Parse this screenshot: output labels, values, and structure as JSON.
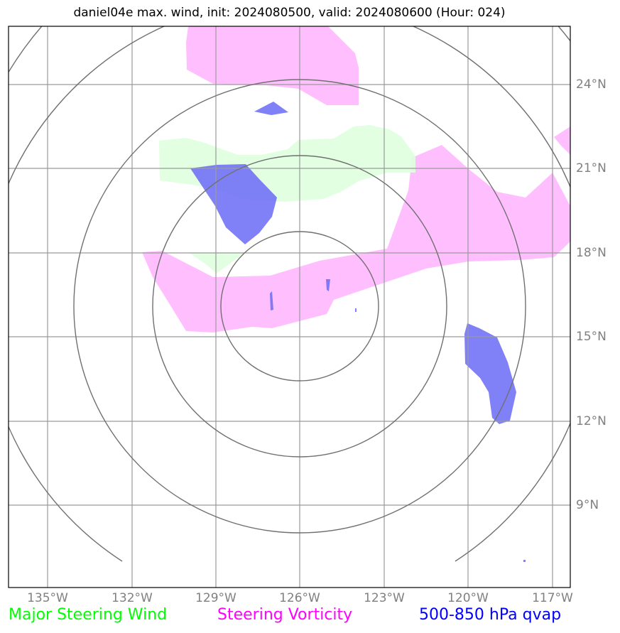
{
  "title": "daniel04e max. wind, init: 2024080500, valid: 2024080600 (Hour: 024)",
  "longitude_labels": [
    "135°W",
    "132°W",
    "129°W",
    "126°W",
    "123°W",
    "120°W",
    "117°W"
  ],
  "latitude_labels": [
    "24°N",
    "21°N",
    "18°N",
    "15°N",
    "12°N",
    "9°N"
  ],
  "legend": [
    {
      "label": "Major Steering Wind",
      "color": "#00ff00"
    },
    {
      "label": "Steering Vorticity",
      "color": "#ff00ff"
    },
    {
      "label": "500-850 hPa qvap",
      "color": "#0000ff"
    }
  ],
  "colors": {
    "steering_wind_fill": "#dfffdf",
    "vorticity_fill": "#ffbfff",
    "qvap_fill": "#7f7ff8",
    "grid": "#808080",
    "range_rings": "#707070"
  },
  "map": {
    "extent": {
      "lon_min": "136.4°W",
      "lon_max": "116.5°W",
      "lat_min": "6.0°N",
      "lat_max": "26.0°N"
    },
    "gridlines": true,
    "range_rings_count": 5
  }
}
